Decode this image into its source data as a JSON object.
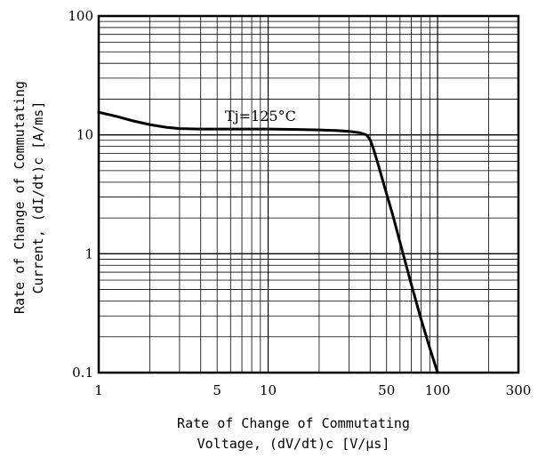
{
  "chart_data": {
    "type": "line",
    "x_scale": "log",
    "y_scale": "log",
    "xlim": [
      1,
      300
    ],
    "ylim": [
      0.1,
      100
    ],
    "x_tick_labels": [
      {
        "value": 1,
        "label": "1"
      },
      {
        "value": 5,
        "label": "5"
      },
      {
        "value": 10,
        "label": "10"
      },
      {
        "value": 50,
        "label": "50"
      },
      {
        "value": 100,
        "label": "100"
      },
      {
        "value": 300,
        "label": "300"
      }
    ],
    "y_tick_labels": [
      {
        "value": 0.1,
        "label": "0.1"
      },
      {
        "value": 1,
        "label": "1"
      },
      {
        "value": 10,
        "label": "10"
      },
      {
        "value": 100,
        "label": "100"
      }
    ],
    "xlabel": [
      "Rate of Change of Commutating",
      "Voltage, (dV/dt)c [V/µs]"
    ],
    "ylabel": [
      "Rate of Change of Commutating",
      "Current, (dI/dt)c [A/ms]"
    ],
    "grid": true,
    "annotation": "Tj=125°C",
    "series": [
      {
        "x": [
          1,
          1.3,
          1.6,
          2,
          2.5,
          3,
          4,
          5,
          7,
          10,
          15,
          20,
          25,
          30,
          35,
          38,
          40,
          42,
          45,
          50,
          55,
          60,
          70,
          80,
          90,
          100
        ],
        "y": [
          15.5,
          14.2,
          13.1,
          12.2,
          11.6,
          11.3,
          11.2,
          11.2,
          11.2,
          11.2,
          11.1,
          11.0,
          10.9,
          10.7,
          10.4,
          10.0,
          9.1,
          7.5,
          5.4,
          3.2,
          2.0,
          1.25,
          0.55,
          0.28,
          0.16,
          0.1
        ]
      }
    ]
  }
}
